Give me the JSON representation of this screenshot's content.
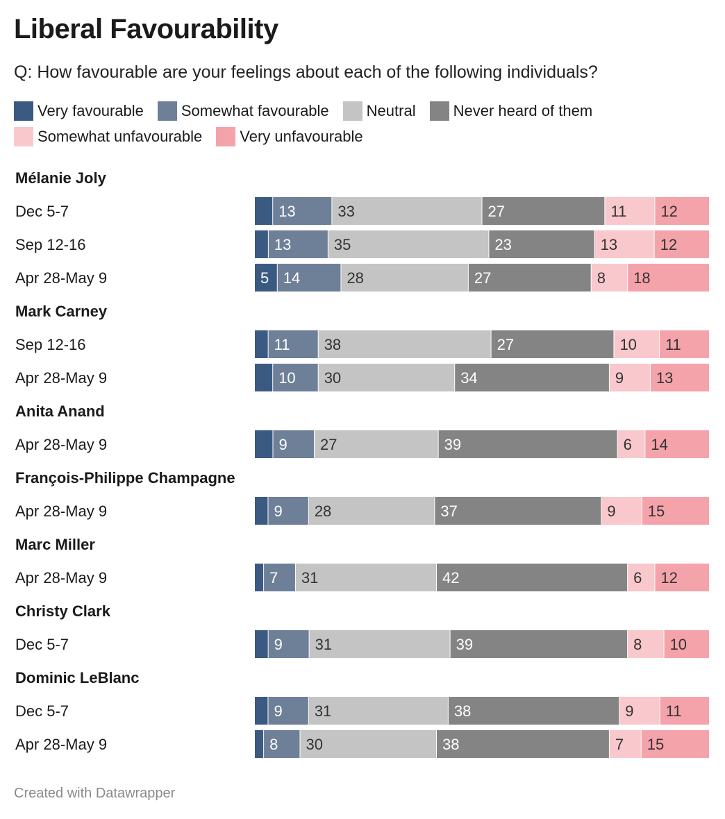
{
  "chart_data": {
    "type": "bar",
    "orientation": "horizontal",
    "stacked": true,
    "title": "Liberal Favourability",
    "subtitle": "Q: How favourable are your feelings about each of the following individuals?",
    "legend_position": "top",
    "series_names": [
      "Very favourable",
      "Somewhat favourable",
      "Neutral",
      "Never heard of them",
      "Somewhat unfavourable",
      "Very unfavourable"
    ],
    "colors": [
      "#3b5a82",
      "#6e7f98",
      "#c4c4c4",
      "#848484",
      "#f9c8cc",
      "#f5a3ab"
    ],
    "label_colors": [
      "#ffffff",
      "#ffffff",
      "#333333",
      "#ffffff",
      "#333333",
      "#333333"
    ],
    "groups": [
      {
        "name": "Mélanie Joly",
        "rows": [
          {
            "label": "Dec 5-7",
            "values": [
              4,
              13,
              33,
              27,
              11,
              12
            ]
          },
          {
            "label": "Sep 12-16",
            "values": [
              3,
              13,
              35,
              23,
              13,
              12
            ]
          },
          {
            "label": "Apr 28-May 9",
            "values": [
              5,
              14,
              28,
              27,
              8,
              18
            ]
          }
        ]
      },
      {
        "name": "Mark Carney",
        "rows": [
          {
            "label": "Sep 12-16",
            "values": [
              3,
              11,
              38,
              27,
              10,
              11
            ]
          },
          {
            "label": "Apr 28-May 9",
            "values": [
              4,
              10,
              30,
              34,
              9,
              13
            ]
          }
        ]
      },
      {
        "name": "Anita Anand",
        "rows": [
          {
            "label": "Apr 28-May 9",
            "values": [
              4,
              9,
              27,
              39,
              6,
              14
            ]
          }
        ]
      },
      {
        "name": "François-Philippe Champagne",
        "rows": [
          {
            "label": "Apr 28-May 9",
            "values": [
              3,
              9,
              28,
              37,
              9,
              15
            ]
          }
        ]
      },
      {
        "name": "Marc Miller",
        "rows": [
          {
            "label": "Apr 28-May 9",
            "values": [
              2,
              7,
              31,
              42,
              6,
              12
            ]
          }
        ]
      },
      {
        "name": "Christy Clark",
        "rows": [
          {
            "label": "Dec 5-7",
            "values": [
              3,
              9,
              31,
              39,
              8,
              10
            ]
          }
        ]
      },
      {
        "name": "Dominic LeBlanc",
        "rows": [
          {
            "label": "Dec 5-7",
            "values": [
              3,
              9,
              31,
              38,
              9,
              11
            ]
          },
          {
            "label": "Apr 28-May 9",
            "values": [
              2,
              8,
              30,
              38,
              7,
              15
            ]
          }
        ]
      }
    ]
  },
  "footer": "Created with Datawrapper"
}
